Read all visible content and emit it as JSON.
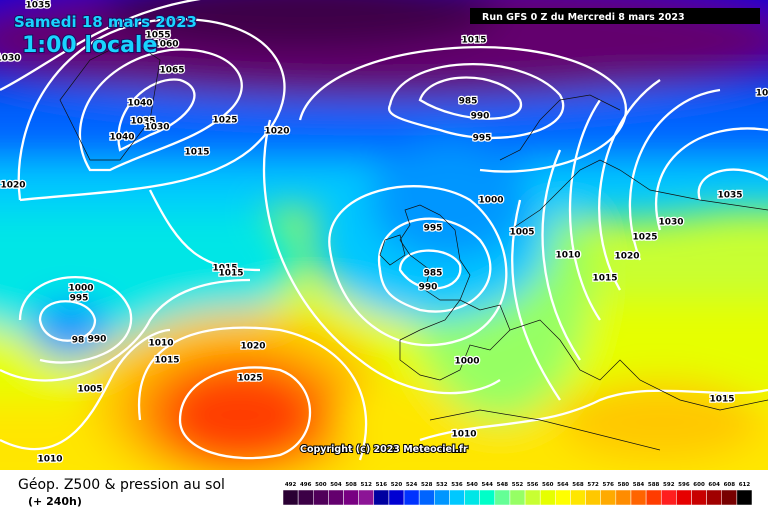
{
  "header": {
    "date": "Samedi 18 mars 2023",
    "time": "1:00 locale",
    "run": "Run GFS 0 Z du Mercredi 8 mars 2023"
  },
  "copyright": "Copyright (c) 2023 Meteociel.fr",
  "footer": {
    "title": "Géop. Z500 & pression au sol",
    "subtitle": "(+ 240h)"
  },
  "scale": {
    "values": [
      492,
      496,
      500,
      504,
      508,
      512,
      516,
      520,
      524,
      528,
      532,
      536,
      540,
      544,
      548,
      552,
      556,
      560,
      564,
      568,
      572,
      576,
      580,
      584,
      588,
      592,
      596,
      600,
      604,
      608,
      612
    ],
    "colors": [
      "#2a0033",
      "#3c0046",
      "#50005a",
      "#64006e",
      "#780082",
      "#8c1496",
      "#0000a0",
      "#0000d2",
      "#0032ff",
      "#0064ff",
      "#0096ff",
      "#00c8ff",
      "#00e6e6",
      "#00ffc8",
      "#64ff96",
      "#96ff64",
      "#c8ff32",
      "#e6ff00",
      "#ffff00",
      "#ffe600",
      "#ffc800",
      "#ffaa00",
      "#ff8c00",
      "#ff6400",
      "#ff3c00",
      "#ff1e1e",
      "#e60000",
      "#c80000",
      "#a00000",
      "#780000",
      "#000000"
    ]
  },
  "isobar_labels": [
    "1035",
    "1055",
    "1060",
    "1065",
    "1040",
    "1035",
    "1030",
    "1040",
    "1030",
    "1025",
    "1020",
    "1015",
    "1015",
    "985",
    "990",
    "995",
    "1000",
    "995",
    "985",
    "990",
    "1005",
    "1010",
    "1015",
    "1020",
    "1025",
    "1030",
    "1035",
    "1020",
    "1015",
    "1015",
    "1000",
    "995",
    "990",
    "98",
    "1010",
    "1015",
    "1020",
    "1025",
    "1005",
    "1000",
    "1010",
    "1015",
    "1010",
    "10"
  ]
}
